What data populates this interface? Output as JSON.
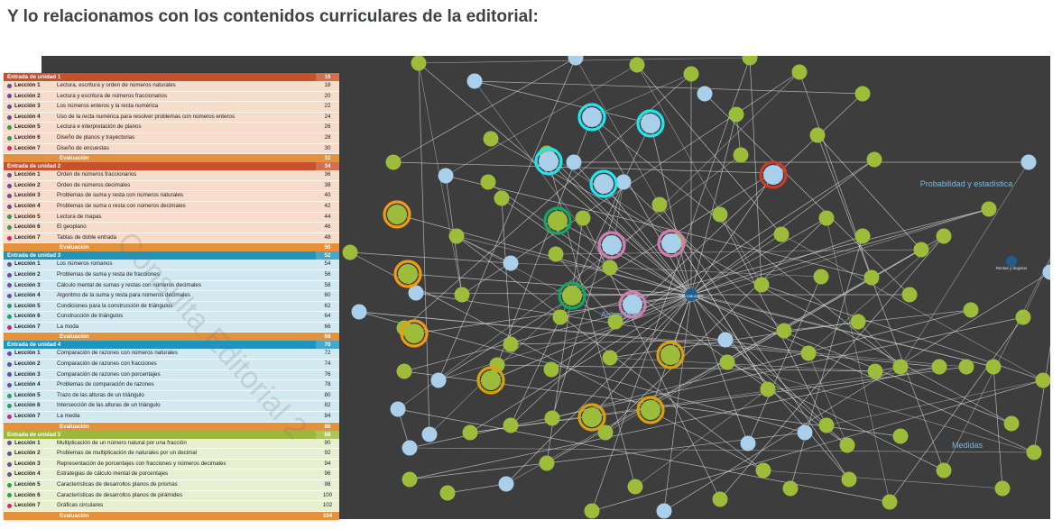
{
  "heading": "Y lo relacionamos con los contenidos curriculares de la editorial:",
  "watermark": "Consulta Editorial 2",
  "colors": {
    "panel_bg": "#3d3d3d",
    "node_green": "#9cbc3a",
    "node_blue": "#a9cfea",
    "node_dark_blue": "#1f5f8f",
    "ring_cyan": "#20e6ee",
    "ring_orange": "#f39a14",
    "ring_gold": "#d8a20e",
    "ring_green": "#12a764",
    "ring_pink": "#cf7fae",
    "ring_red": "#d03a27",
    "edge": "#d9d9d9"
  },
  "graph": {
    "areas": [
      "Probabilidad y estadística",
      "Aritmética",
      "Medidas"
    ],
    "hubs": [
      "Nro naturales",
      "Rectas y ángulos"
    ]
  },
  "toc": {
    "units": [
      {
        "title": "Entrada de unidad 1",
        "page": "16",
        "color": "#c8502d",
        "bg": "#f6dccb",
        "lessons": [
          {
            "label": "Lección 1",
            "title": "Lectura, escritura y orden de números naturales",
            "page": "18",
            "dot": "#6a4a9c"
          },
          {
            "label": "Lección 2",
            "title": "Lectura y escritura de números fraccionarios",
            "page": "20",
            "dot": "#6a4a9c"
          },
          {
            "label": "Lección 3",
            "title": "Los números enteros y la recta numérica",
            "page": "22",
            "dot": "#6a4a9c"
          },
          {
            "label": "Lección 4",
            "title": "Uso de la recta numérica para resolver problemas con números enteros",
            "page": "24",
            "dot": "#6a4a9c"
          },
          {
            "label": "Lección 5",
            "title": "Lectura e interpretación de planos",
            "page": "26",
            "dot": "#2a9d5c"
          },
          {
            "label": "Lección 6",
            "title": "Diseño de planos y trayectorias",
            "page": "28",
            "dot": "#2a9d5c"
          },
          {
            "label": "Lección 7",
            "title": "Diseño de encuestas",
            "page": "30",
            "dot": "#d6246e"
          }
        ],
        "evaluation": "Evaluación",
        "evaluation_page": "32"
      },
      {
        "title": "Entrada de unidad 2",
        "page": "34",
        "color": "#c8502d",
        "bg": "#f6dccb",
        "lessons": [
          {
            "label": "Lección 1",
            "title": "Orden de números fraccionarios",
            "page": "36",
            "dot": "#6a4a9c"
          },
          {
            "label": "Lección 2",
            "title": "Orden de números decimales",
            "page": "38",
            "dot": "#6a4a9c"
          },
          {
            "label": "Lección 3",
            "title": "Problemas de suma y resta con números naturales",
            "page": "40",
            "dot": "#6a4a9c"
          },
          {
            "label": "Lección 4",
            "title": "Problemas de suma o resta con números decimales",
            "page": "42",
            "dot": "#6a4a9c"
          },
          {
            "label": "Lección 5",
            "title": "Lectura de mapas",
            "page": "44",
            "dot": "#2a9d5c"
          },
          {
            "label": "Lección 6",
            "title": "El geoplano",
            "page": "46",
            "dot": "#2a9d5c"
          },
          {
            "label": "Lección 7",
            "title": "Tablas de doble entrada",
            "page": "48",
            "dot": "#d6246e"
          }
        ],
        "evaluation": "Evaluación",
        "evaluation_page": "50"
      },
      {
        "title": "Entrada de unidad 3",
        "page": "52",
        "color": "#1d95bd",
        "bg": "#d3e9f2",
        "lessons": [
          {
            "label": "Lección 1",
            "title": "Los números romanos",
            "page": "54",
            "dot": "#6a4a9c"
          },
          {
            "label": "Lección 2",
            "title": "Problemas de suma y resta de fracciones",
            "page": "56",
            "dot": "#6a4a9c"
          },
          {
            "label": "Lección 3",
            "title": "Cálculo mental de sumas y restas con números decimales",
            "page": "58",
            "dot": "#6a4a9c"
          },
          {
            "label": "Lección 4",
            "title": "Algoritmo de la suma y resta para números decimales",
            "page": "60",
            "dot": "#6a4a9c"
          },
          {
            "label": "Lección 5",
            "title": "Condiciones para la construcción de triángulos",
            "page": "62",
            "dot": "#2a9d5c"
          },
          {
            "label": "Lección 6",
            "title": "Construcción de triángulos",
            "page": "64",
            "dot": "#2a9d5c"
          },
          {
            "label": "Lección 7",
            "title": "La moda",
            "page": "66",
            "dot": "#d6246e"
          }
        ],
        "evaluation": "Evaluación",
        "evaluation_page": "68"
      },
      {
        "title": "Entrada de unidad 4",
        "page": "70",
        "color": "#1d95bd",
        "bg": "#d3e9f2",
        "lessons": [
          {
            "label": "Lección 1",
            "title": "Comparación de razones con números naturales",
            "page": "72",
            "dot": "#6a4a9c"
          },
          {
            "label": "Lección 2",
            "title": "Comparación de razones con fracciones",
            "page": "74",
            "dot": "#6a4a9c"
          },
          {
            "label": "Lección 3",
            "title": "Comparación de razones con porcentajes",
            "page": "76",
            "dot": "#6a4a9c"
          },
          {
            "label": "Lección 4",
            "title": "Problemas de comparación de razones",
            "page": "78",
            "dot": "#6a4a9c"
          },
          {
            "label": "Lección 5",
            "title": "Trazo de las alturas de un triángulo",
            "page": "80",
            "dot": "#2a9d5c"
          },
          {
            "label": "Lección 6",
            "title": "Intersección de las alturas de un triángulo",
            "page": "82",
            "dot": "#2a9d5c"
          },
          {
            "label": "Lección 7",
            "title": "La media",
            "page": "84",
            "dot": "#d6246e"
          }
        ],
        "evaluation": "Evaluación",
        "evaluation_page": "86"
      },
      {
        "title": "Entrada de unidad 5",
        "page": "88",
        "color": "#9db73a",
        "bg": "#e9f0d2",
        "lessons": [
          {
            "label": "Lección 1",
            "title": "Multiplicación de un número natural por una fracción",
            "page": "90",
            "dot": "#6a4a9c"
          },
          {
            "label": "Lección 2",
            "title": "Problemas de multiplicación de naturales por un decimal",
            "page": "92",
            "dot": "#6a4a9c"
          },
          {
            "label": "Lección 3",
            "title": "Representación de porcentajes con fracciones y números decimales",
            "page": "94",
            "dot": "#6a4a9c"
          },
          {
            "label": "Lección 4",
            "title": "Estrategias de cálculo mental de porcentajes",
            "page": "96",
            "dot": "#6a4a9c"
          },
          {
            "label": "Lección 5",
            "title": "Características de desarrollos planos de prismas",
            "page": "98",
            "dot": "#2a9d5c"
          },
          {
            "label": "Lección 6",
            "title": "Características de desarrollos planos de pirámides",
            "page": "100",
            "dot": "#2a9d5c"
          },
          {
            "label": "Lección 7",
            "title": "Gráficas circulares",
            "page": "102",
            "dot": "#d6246e"
          }
        ],
        "evaluation": "Evaluación",
        "evaluation_page": "104"
      }
    ]
  }
}
